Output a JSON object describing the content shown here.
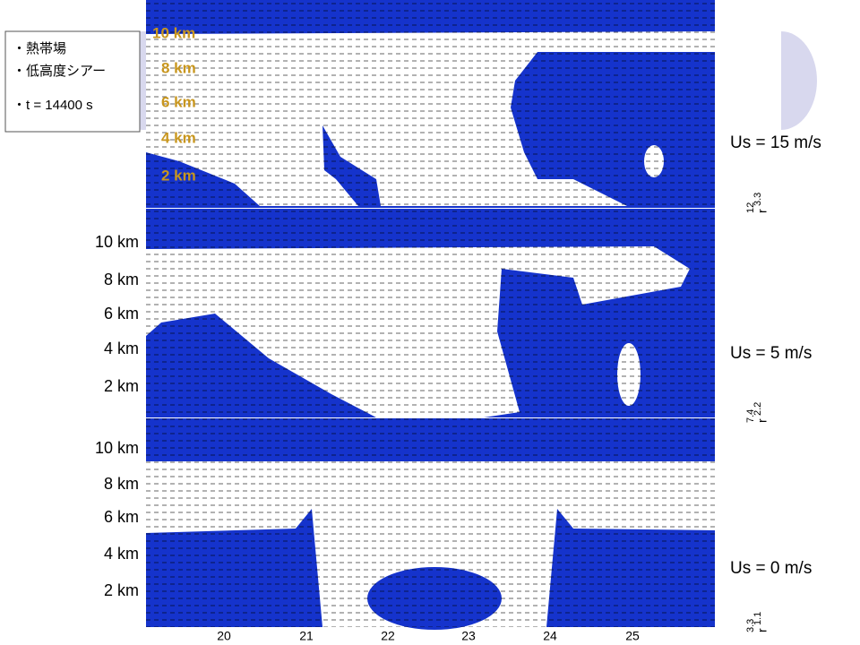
{
  "info_box": [
    "・熱帯場",
    "・低高度シアー",
    "・t = 14400 s"
  ],
  "panels": [
    {
      "shear": "Us = 15 m/s",
      "heights": [
        "10 km",
        "8 km",
        "6 km",
        "4 km",
        "2 km"
      ],
      "corner": {
        "symbol": "r",
        "sub": "3.3",
        "below": "12"
      }
    },
    {
      "shear": "Us = 5 m/s",
      "heights": [
        "10 km",
        "8 km",
        "6 km",
        "4 km",
        "2 km"
      ],
      "corner": {
        "symbol": "r",
        "sub": "2.2",
        "below": "7.4"
      }
    },
    {
      "shear": "Us = 0 m/s",
      "heights": [
        "10 km",
        "8 km",
        "6 km",
        "4 km",
        "2 km"
      ],
      "corner": {
        "symbol": "r",
        "sub": "1.1",
        "below": "3.3"
      }
    }
  ],
  "x_ticks": [
    "20",
    "21",
    "22",
    "23",
    "24",
    "25"
  ]
}
